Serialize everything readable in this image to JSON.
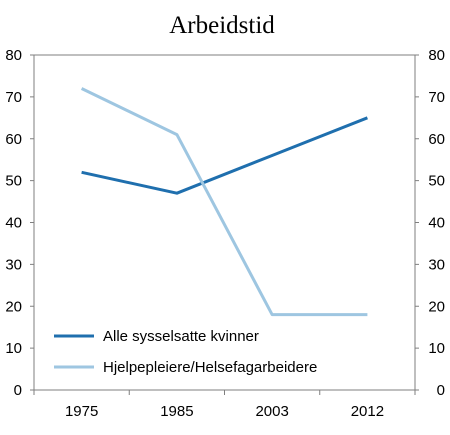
{
  "chart_data": {
    "type": "line",
    "title": "Arbeidstid",
    "categories": [
      "1975",
      "1985",
      "2003",
      "2012"
    ],
    "y_ticks": [
      "0",
      "10",
      "20",
      "30",
      "40",
      "50",
      "60",
      "70",
      "80"
    ],
    "ylim": [
      0,
      80
    ],
    "secondary_axis": true,
    "grid": false,
    "legend_position": "bottom-left",
    "series": [
      {
        "name": "Alle sysselsatte kvinner",
        "values": [
          52,
          47,
          56,
          65
        ],
        "color": "#1f6fae"
      },
      {
        "name": "Hjelpepleiere/Helsefagarbeidere",
        "values": [
          72,
          61,
          18,
          18
        ],
        "color": "#9ec6e1"
      }
    ]
  }
}
